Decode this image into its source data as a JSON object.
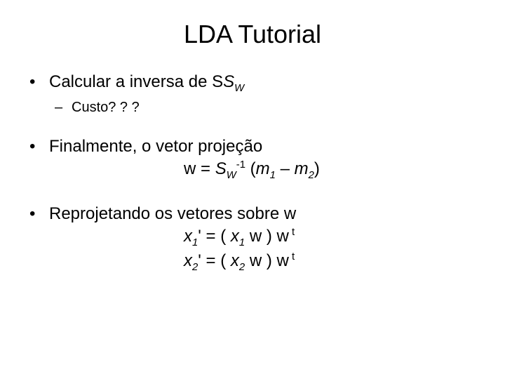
{
  "background_color": "#ffffff",
  "text_color": "#000000",
  "font_family": "Arial",
  "title": {
    "text": "LDA Tutorial",
    "fontsize": 36,
    "align": "center"
  },
  "bullets": [
    {
      "level": 1,
      "text_plain": "Calcular a inversa de S",
      "sub": "W",
      "fontsize": 24,
      "children": [
        {
          "level": 2,
          "text": "Custo? ? ?",
          "fontsize": 20
        }
      ]
    },
    {
      "level": 1,
      "text": "Finalmente, o vetor projeção",
      "fontsize": 24,
      "formula": {
        "lhs_var": "w",
        "eq": " = ",
        "rhs_matrix": "S",
        "rhs_matrix_sub": "W",
        "rhs_matrix_sup": "-1",
        "open": " (",
        "m1": "m",
        "m1_sub": "1",
        "minus": " – ",
        "m2": "m",
        "m2_sub": "2",
        "close": ")"
      }
    },
    {
      "level": 1,
      "text": "Reprojetando os vetores sobre w",
      "fontsize": 24,
      "formulas": [
        {
          "lhs_var": "x",
          "lhs_sub": "1",
          "lhs_prime": "'",
          "eq": " = ( ",
          "r_var": "x",
          "r_sub": "1",
          "w": " w ) w",
          "t_sup": " t"
        },
        {
          "lhs_var": "x",
          "lhs_sub": "2",
          "lhs_prime": "'",
          "eq": " = ( ",
          "r_var": "x",
          "r_sub": "2",
          "w": " w ) w",
          "t_sup": " t"
        }
      ]
    }
  ]
}
